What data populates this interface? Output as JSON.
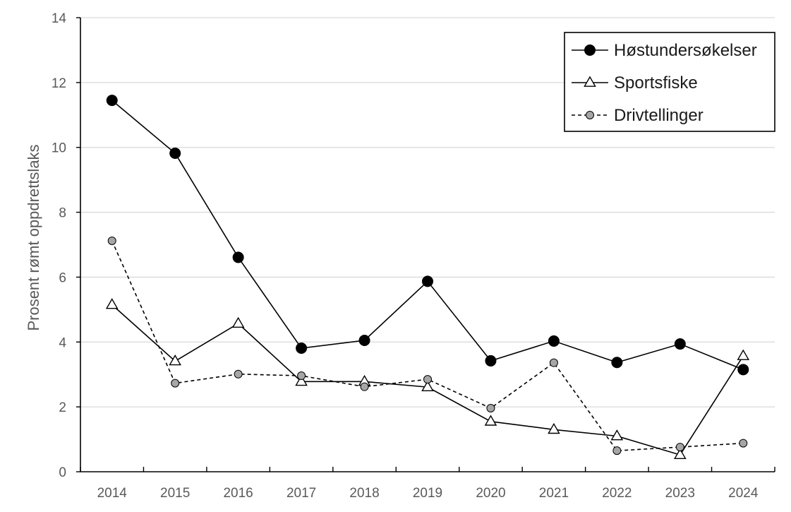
{
  "chart_data": {
    "type": "line",
    "title": "",
    "xlabel": "",
    "ylabel": "Prosent rømt oppdrettslaks",
    "ylim": [
      0,
      14
    ],
    "yticks": [
      0,
      2,
      4,
      6,
      8,
      10,
      12,
      14
    ],
    "grid": true,
    "legend_position": "top-right",
    "categories": [
      "2014",
      "2015",
      "2016",
      "2017",
      "2018",
      "2019",
      "2020",
      "2021",
      "2022",
      "2023",
      "2024"
    ],
    "series": [
      {
        "name": "Høstundersøkelser",
        "marker": "filled-circle",
        "line_style": "solid",
        "color": "#000000",
        "values": [
          11.45,
          9.82,
          6.61,
          3.81,
          4.05,
          5.87,
          3.42,
          4.03,
          3.37,
          3.94,
          3.15
        ]
      },
      {
        "name": "Sportsfiske",
        "marker": "open-triangle",
        "line_style": "solid",
        "color": "#000000",
        "values": [
          5.15,
          3.41,
          4.57,
          2.78,
          2.78,
          2.61,
          1.55,
          1.3,
          1.1,
          0.52,
          3.57
        ]
      },
      {
        "name": "Drivtellinger",
        "marker": "grey-circle",
        "line_style": "dashed",
        "color": "#a6a6a6",
        "values": [
          7.12,
          2.73,
          3.01,
          2.96,
          2.62,
          2.85,
          1.96,
          3.36,
          0.65,
          0.76,
          0.88
        ]
      }
    ]
  }
}
